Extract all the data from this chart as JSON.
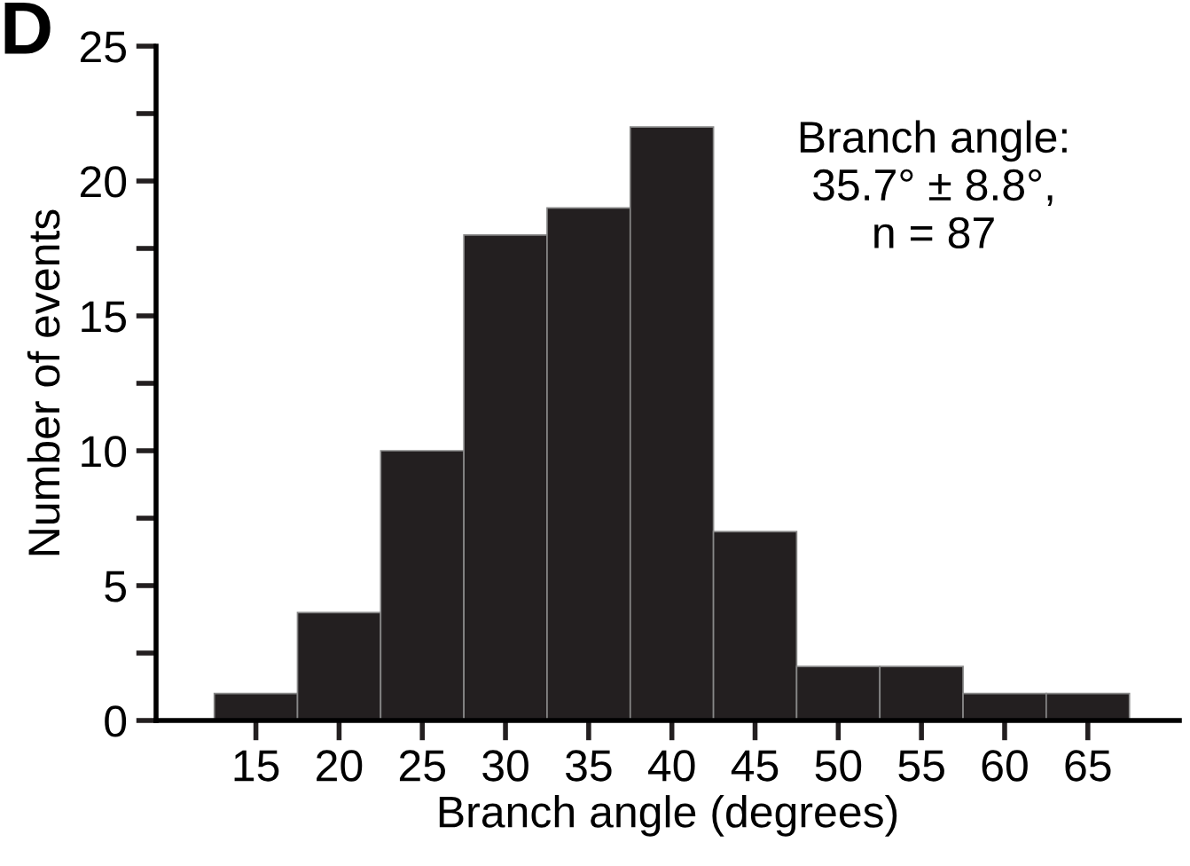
{
  "chart_data": {
    "type": "histogram",
    "xlabel": "Branch angle (degrees)",
    "ylabel": "Number of events",
    "bins": [
      12.5,
      17.5,
      22.5,
      27.5,
      32.5,
      37.5,
      42.5,
      47.5,
      52.5,
      57.5,
      62.5,
      67.5
    ],
    "values": [
      1,
      4,
      10,
      18,
      19,
      22,
      7,
      2,
      2,
      1,
      1
    ],
    "color": "#231f20",
    "xlim": [
      9,
      70.5
    ],
    "xticks": [
      15,
      20,
      25,
      30,
      35,
      40,
      45,
      50,
      55,
      60,
      65
    ],
    "ylim": [
      0,
      25
    ],
    "yticks": [
      0,
      {
        "value": 2.5,
        "label": null
      },
      5,
      {
        "value": 7.5,
        "label": null
      },
      10,
      {
        "value": 12.5,
        "label": null
      },
      15,
      {
        "value": 17.5,
        "label": null
      },
      20,
      {
        "value": 22.5,
        "label": null
      },
      25
    ],
    "grid": false,
    "annotations": [
      "Branch angle:\n35.7° ± 8.8°,\nn = 87",
      "D"
    ]
  }
}
